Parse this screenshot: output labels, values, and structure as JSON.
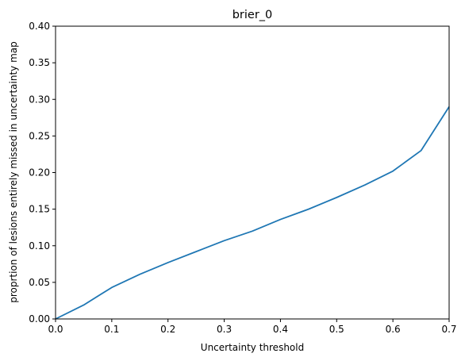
{
  "chart_data": {
    "type": "line",
    "title": "brier_0",
    "xlabel": "Uncertainty threshold",
    "ylabel": "proprtion of lesions entirely missed in uncertainty map",
    "xlim": [
      0.0,
      0.7
    ],
    "ylim": [
      0.0,
      0.4
    ],
    "xticks": [
      "0.0",
      "0.1",
      "0.2",
      "0.3",
      "0.4",
      "0.5",
      "0.6",
      "0.7"
    ],
    "yticks": [
      "0.00",
      "0.05",
      "0.10",
      "0.15",
      "0.20",
      "0.25",
      "0.30",
      "0.35",
      "0.40"
    ],
    "grid": false,
    "series": [
      {
        "color": "#1f77b4",
        "x": [
          0.0,
          0.05,
          0.1,
          0.15,
          0.2,
          0.25,
          0.3,
          0.35,
          0.4,
          0.45,
          0.5,
          0.55,
          0.6,
          0.65,
          0.7
        ],
        "y": [
          0.0,
          0.019,
          0.043,
          0.061,
          0.077,
          0.092,
          0.107,
          0.12,
          0.136,
          0.15,
          0.166,
          0.183,
          0.202,
          0.23,
          0.29
        ]
      }
    ]
  }
}
